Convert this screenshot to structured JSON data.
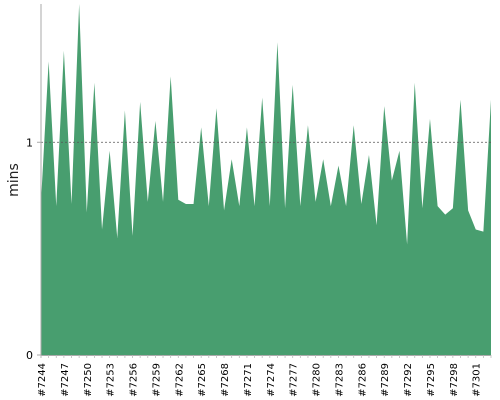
{
  "chart_data": {
    "type": "area",
    "title": "",
    "xlabel": "",
    "ylabel": "mins",
    "ylim": [
      0,
      1.65
    ],
    "y_ticks": [
      {
        "value": 0,
        "label": "0"
      },
      {
        "value": 1,
        "label": "1"
      }
    ],
    "reference_line": {
      "value": 1,
      "style": "dotted"
    },
    "grid": false,
    "legend": "none",
    "x_tick_every": 3,
    "x": [
      "#7244",
      "#7245",
      "#7246",
      "#7247",
      "#7248",
      "#7249",
      "#7250",
      "#7251",
      "#7252",
      "#7253",
      "#7254",
      "#7255",
      "#7256",
      "#7257",
      "#7258",
      "#7259",
      "#7260",
      "#7261",
      "#7262",
      "#7263",
      "#7264",
      "#7265",
      "#7266",
      "#7267",
      "#7268",
      "#7269",
      "#7270",
      "#7271",
      "#7272",
      "#7273",
      "#7274",
      "#7275",
      "#7276",
      "#7277",
      "#7278",
      "#7279",
      "#7280",
      "#7281",
      "#7282",
      "#7283",
      "#7284",
      "#7285",
      "#7286",
      "#7287",
      "#7288",
      "#7289",
      "#7290",
      "#7291",
      "#7292",
      "#7293",
      "#7294",
      "#7295",
      "#7296",
      "#7297",
      "#7298",
      "#7299",
      "#7300",
      "#7301",
      "#7302",
      "#7303"
    ],
    "series": [
      {
        "color": "#489e6f",
        "values": [
          0.72,
          1.38,
          0.7,
          1.43,
          0.71,
          1.65,
          0.67,
          1.28,
          0.59,
          0.96,
          0.55,
          1.15,
          0.56,
          1.19,
          0.72,
          1.1,
          0.72,
          1.31,
          0.73,
          0.71,
          0.71,
          1.07,
          0.7,
          1.16,
          0.68,
          0.92,
          0.7,
          1.07,
          0.7,
          1.21,
          0.7,
          1.47,
          0.69,
          1.27,
          0.7,
          1.08,
          0.72,
          0.92,
          0.7,
          0.89,
          0.7,
          1.08,
          0.71,
          0.94,
          0.61,
          1.17,
          0.82,
          0.96,
          0.52,
          1.28,
          0.69,
          1.11,
          0.7,
          0.66,
          0.69,
          1.2,
          0.68,
          0.59,
          0.58,
          1.2
        ]
      }
    ]
  }
}
